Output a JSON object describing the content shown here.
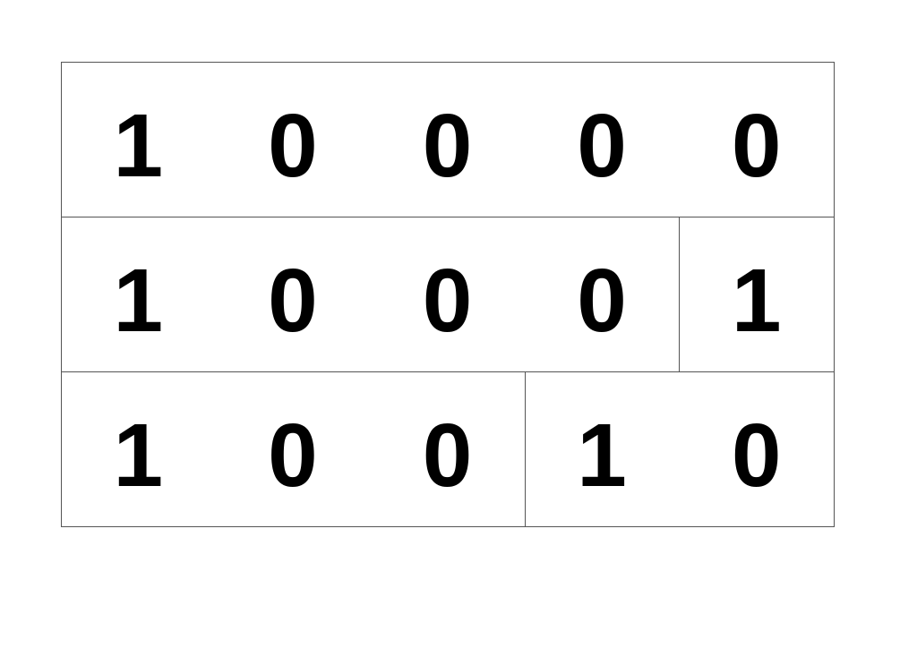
{
  "rows": [
    {
      "cards": [
        [
          "1",
          "0",
          "0",
          "0",
          "0"
        ]
      ]
    },
    {
      "cards": [
        [
          "1",
          "0",
          "0",
          "0"
        ],
        [
          "1"
        ]
      ]
    },
    {
      "cards": [
        [
          "1",
          "0",
          "0"
        ],
        [
          "1",
          "0"
        ]
      ]
    }
  ]
}
